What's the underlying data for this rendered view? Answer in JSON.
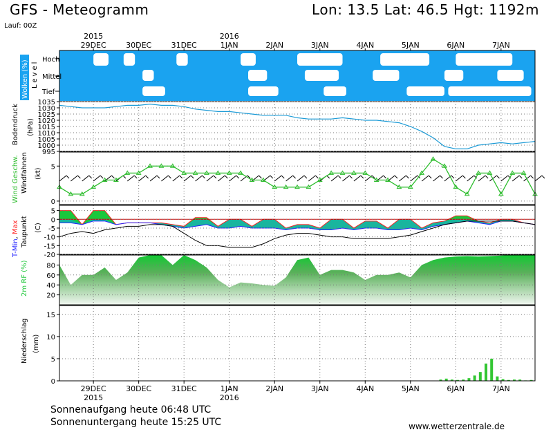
{
  "header": {
    "title": "GFS - Meteogramm",
    "location": "Lon: 13.5  Lat: 46.5  Hgt: 1192m",
    "run": "Lauf: 00Z"
  },
  "footer": {
    "sunrise": "Sonnenaufgang heute 06:48 UTC",
    "sunset": "Sonnenuntergang heute 15:25 UTC",
    "source": "www.wetterzentrale.de"
  },
  "colors": {
    "cloud_fill": "#1aa3f0",
    "pressure_line": "#1a9ad6",
    "wind_line": "#2ebd2e",
    "wind_marker": "#2ebd2e",
    "tmax_fill": "#19c83c",
    "tmin_fill": "#19b2a8",
    "tmax_line": "#ff2020",
    "tmin_line": "#2020ff",
    "dewpoint_line": "#000000",
    "humidity_fill": "#22c83c",
    "precip_bar": "#33c633"
  },
  "chart_data": [
    {
      "id": "clouds",
      "type": "area",
      "ylabel": "Wolken (%)",
      "level_label": "Level",
      "levels": [
        "Hoch",
        "Mittel",
        "Tief"
      ],
      "x_range": [
        0,
        252
      ],
      "high_clear_gaps": [
        [
          18,
          26
        ],
        [
          34,
          40
        ],
        [
          62,
          68
        ],
        [
          96,
          104
        ],
        [
          126,
          150
        ],
        [
          170,
          196
        ],
        [
          210,
          240
        ]
      ],
      "mid_clear_gaps": [
        [
          44,
          50
        ],
        [
          100,
          110
        ],
        [
          130,
          148
        ],
        [
          166,
          180
        ],
        [
          204,
          214
        ],
        [
          232,
          246
        ]
      ],
      "low_clear_gaps": [
        [
          44,
          56
        ],
        [
          100,
          116
        ],
        [
          140,
          152
        ],
        [
          184,
          204
        ],
        [
          206,
          250
        ]
      ]
    },
    {
      "id": "pressure",
      "type": "line",
      "ylabel": "Bodendruck (hPa)",
      "yticks": [
        995,
        1000,
        1005,
        1010,
        1015,
        1020,
        1025,
        1030,
        1035
      ],
      "ylim": [
        995,
        1035
      ],
      "x": [
        0,
        6,
        12,
        18,
        24,
        30,
        36,
        42,
        48,
        54,
        60,
        66,
        72,
        78,
        84,
        90,
        96,
        102,
        108,
        114,
        120,
        126,
        132,
        138,
        144,
        150,
        156,
        162,
        168,
        174,
        180,
        186,
        192,
        198,
        204,
        210,
        216,
        222,
        228,
        234,
        240,
        246,
        252
      ],
      "values": [
        1032,
        1031,
        1030,
        1030,
        1030,
        1031,
        1032,
        1032,
        1033,
        1032,
        1032,
        1031,
        1029,
        1028,
        1027,
        1027,
        1026,
        1025,
        1024,
        1024,
        1024,
        1022,
        1021,
        1021,
        1021,
        1022,
        1021,
        1020,
        1020,
        1019,
        1018,
        1015,
        1011,
        1006,
        999,
        997,
        997,
        1000,
        1001,
        1002,
        1001,
        1002,
        1003
      ]
    },
    {
      "id": "wind",
      "type": "line",
      "ylabel": "Wind Geschw. (kt)",
      "ylabel2": "Windfahnen",
      "yticks": [
        0,
        5
      ],
      "ylim": [
        -0.5,
        7
      ],
      "x": [
        0,
        6,
        12,
        18,
        24,
        30,
        36,
        42,
        48,
        54,
        60,
        66,
        72,
        78,
        84,
        90,
        96,
        102,
        108,
        114,
        120,
        126,
        132,
        138,
        144,
        150,
        156,
        162,
        168,
        174,
        180,
        186,
        192,
        198,
        204,
        210,
        216,
        222,
        228,
        234,
        240,
        246,
        252
      ],
      "values": [
        2,
        1,
        1,
        2,
        3,
        3,
        4,
        4,
        5,
        5,
        5,
        4,
        4,
        4,
        4,
        4,
        4,
        3,
        3,
        2,
        2,
        2,
        2,
        3,
        4,
        4,
        4,
        4,
        3,
        3,
        2,
        2,
        4,
        6,
        5,
        2,
        1,
        4,
        4,
        1,
        4,
        4,
        1
      ]
    },
    {
      "id": "temperature",
      "type": "area",
      "ylabel": "T-Min, Max (C)",
      "ylabel2": "Taupunkt",
      "yticks": [
        -20,
        -15,
        -10,
        -5,
        0,
        5
      ],
      "ylim": [
        -20,
        8
      ],
      "x": [
        0,
        6,
        12,
        18,
        24,
        30,
        36,
        42,
        48,
        54,
        60,
        66,
        72,
        78,
        84,
        90,
        96,
        102,
        108,
        114,
        120,
        126,
        132,
        138,
        144,
        150,
        156,
        162,
        168,
        174,
        180,
        186,
        192,
        198,
        204,
        210,
        216,
        222,
        228,
        234,
        240,
        246,
        252
      ],
      "tmax": [
        5,
        5,
        -3,
        5,
        5,
        -3,
        -2,
        -2,
        -2,
        -2,
        -3,
        -4,
        1,
        1,
        -4,
        0,
        0,
        -4,
        0,
        0,
        -5,
        -3,
        -3,
        -5,
        0,
        0,
        -5,
        -1,
        -1,
        -5,
        0,
        0,
        -5,
        -2,
        -1,
        2,
        2,
        -1,
        -2,
        0,
        0,
        -2,
        -3
      ],
      "tmin": [
        -2,
        -2,
        -3,
        -1,
        -1,
        -3,
        -2,
        -2,
        -2,
        -3,
        -4,
        -5,
        -4,
        -3,
        -5,
        -5,
        -4,
        -5,
        -5,
        -5,
        -6,
        -5,
        -5,
        -6,
        -6,
        -5,
        -6,
        -5,
        -5,
        -6,
        -6,
        -5,
        -6,
        -4,
        -3,
        -2,
        -1,
        -2,
        -3,
        -1,
        -1,
        -2,
        -3
      ],
      "dewpoint": [
        -10,
        -8,
        -7,
        -8,
        -6,
        -5,
        -4,
        -4,
        -3,
        -3,
        -4,
        -8,
        -12,
        -15,
        -15,
        -16,
        -16,
        -16,
        -14,
        -11,
        -9,
        -8,
        -8,
        -9,
        -10,
        -10,
        -11,
        -11,
        -11,
        -11,
        -10,
        -9,
        -7,
        -5,
        -3,
        -2,
        -1,
        -1,
        -1,
        -1,
        -1,
        -2,
        -3
      ]
    },
    {
      "id": "humidity",
      "type": "area",
      "ylabel": "2m RF (%)",
      "yticks": [
        20,
        40,
        60,
        80
      ],
      "ylim": [
        0,
        100
      ],
      "x": [
        0,
        6,
        12,
        18,
        24,
        30,
        36,
        42,
        48,
        54,
        60,
        66,
        72,
        78,
        84,
        90,
        96,
        102,
        108,
        114,
        120,
        126,
        132,
        138,
        144,
        150,
        156,
        162,
        168,
        174,
        180,
        186,
        192,
        198,
        204,
        210,
        216,
        222,
        228,
        234,
        240,
        246,
        252
      ],
      "values": [
        80,
        40,
        60,
        60,
        75,
        50,
        65,
        95,
        100,
        100,
        80,
        100,
        90,
        75,
        50,
        35,
        45,
        43,
        40,
        38,
        55,
        90,
        95,
        60,
        70,
        70,
        65,
        50,
        60,
        60,
        65,
        55,
        80,
        90,
        95,
        97,
        98,
        97,
        98,
        99,
        100,
        100,
        100
      ]
    },
    {
      "id": "precipitation",
      "type": "bar",
      "ylabel": "Niederschlag (mm)",
      "yticks": [
        0,
        5,
        10,
        15
      ],
      "ylim": [
        0,
        17
      ],
      "x": [
        202,
        205,
        208,
        211,
        214,
        217,
        220,
        223,
        226,
        229,
        232,
        235,
        238,
        241,
        244,
        247,
        250
      ],
      "values": [
        0.3,
        0.5,
        0.3,
        0.2,
        0.3,
        0.6,
        1.2,
        2.0,
        3.9,
        5.0,
        1.0,
        0.4,
        0.2,
        0.3,
        0.3,
        0.1,
        0.2
      ]
    },
    {
      "id": "time_axis",
      "type": "axis",
      "ticks": [
        {
          "x": 18,
          "label": "29DEC",
          "year": "2015"
        },
        {
          "x": 42,
          "label": "30DEC",
          "year": ""
        },
        {
          "x": 66,
          "label": "31DEC",
          "year": ""
        },
        {
          "x": 90,
          "label": "1JAN",
          "year": "2016"
        },
        {
          "x": 114,
          "label": "2JAN",
          "year": ""
        },
        {
          "x": 138,
          "label": "3JAN",
          "year": ""
        },
        {
          "x": 162,
          "label": "4JAN",
          "year": ""
        },
        {
          "x": 186,
          "label": "5JAN",
          "year": ""
        },
        {
          "x": 210,
          "label": "6JAN",
          "year": ""
        },
        {
          "x": 234,
          "label": "7JAN",
          "year": ""
        }
      ]
    }
  ]
}
